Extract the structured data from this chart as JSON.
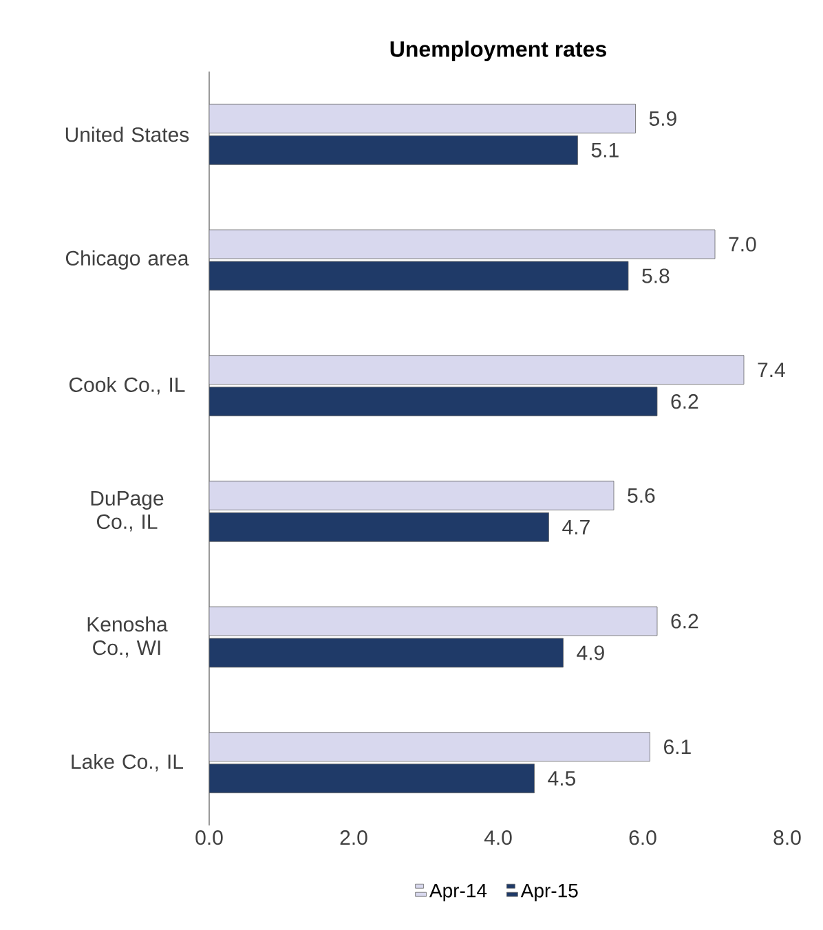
{
  "chart_data": {
    "type": "bar",
    "orientation": "horizontal",
    "title": "Unemployment rates",
    "categories": [
      "United States",
      "Chicago area",
      "Cook Co., IL",
      "DuPage Co., IL",
      "Kenosha Co., WI",
      "Lake Co., IL"
    ],
    "series": [
      {
        "name": "Apr-14",
        "color": "#d8d8ee",
        "values": [
          5.9,
          7.0,
          7.4,
          5.6,
          6.2,
          6.1
        ],
        "value_labels": [
          "5.9",
          "7.0",
          "7.4",
          "5.6",
          "6.2",
          "6.1"
        ]
      },
      {
        "name": "Apr-15",
        "color": "#1f3a68",
        "values": [
          5.1,
          5.8,
          6.2,
          4.7,
          4.9,
          4.5
        ],
        "value_labels": [
          "5.1",
          "5.8",
          "6.2",
          "4.7",
          "4.9",
          "4.5"
        ]
      }
    ],
    "xlim": [
      0,
      8
    ],
    "xticks": [
      {
        "value": 0,
        "label": "0.0"
      },
      {
        "value": 2,
        "label": "2.0"
      },
      {
        "value": 4,
        "label": "4.0"
      },
      {
        "value": 6,
        "label": "6.0"
      },
      {
        "value": 8,
        "label": "8.0"
      }
    ],
    "legend": "bottom",
    "grid": false
  }
}
